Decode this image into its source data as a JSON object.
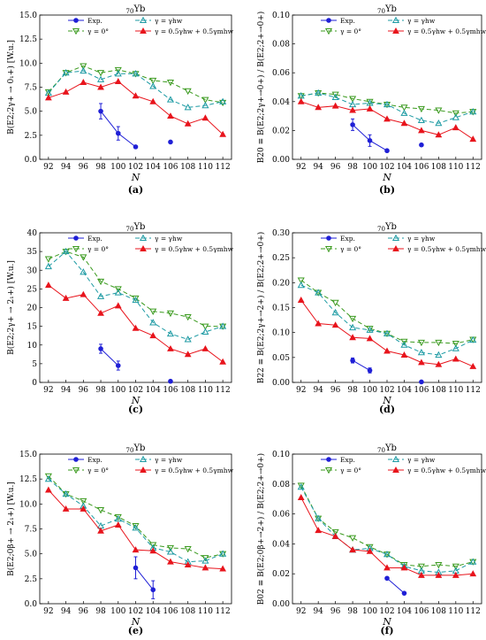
{
  "figure": {
    "colors": {
      "exp": "#1f1fd6",
      "gamma0": "#3a9a1e",
      "gammahw": "#1c9aa3",
      "mix": "#e8141c"
    }
  },
  "chart_data": [
    {
      "type": "line",
      "panel_label": "(a)",
      "title": "70Yb",
      "xlabel": "N",
      "ylabel": "B(E2;2γ+ → 0₁+) [W.u.]",
      "xlim": [
        91,
        113
      ],
      "ylim": [
        0,
        15
      ],
      "xticks": [
        "92",
        "94",
        "96",
        "98",
        "100",
        "102",
        "104",
        "106",
        "108",
        "110",
        "112"
      ],
      "yticks": [
        "0.0",
        "2.5",
        "5.0",
        "7.5",
        "10.0",
        "12.5",
        "15.0"
      ],
      "legend": [
        "Exp.",
        "γ = 0°",
        "γ = γhw",
        "γ = 0.5γhw + 0.5γmhw"
      ],
      "legend_position": "top-right",
      "series": [
        {
          "name": "γ = 0°",
          "x": [
            92,
            94,
            96,
            98,
            100,
            102,
            104,
            106,
            108,
            110,
            112
          ],
          "y": [
            7.0,
            9.0,
            9.7,
            9.0,
            9.3,
            8.9,
            8.2,
            8.0,
            7.1,
            6.2,
            5.9
          ]
        },
        {
          "name": "γ = γhw",
          "x": [
            92,
            94,
            96,
            98,
            100,
            102,
            104,
            106,
            108,
            110,
            112
          ],
          "y": [
            6.9,
            9.0,
            9.2,
            8.3,
            8.9,
            8.9,
            7.6,
            6.2,
            5.4,
            5.6,
            6.0
          ]
        },
        {
          "name": "γ = 0.5γhw + 0.5γmhw",
          "x": [
            92,
            94,
            96,
            98,
            100,
            102,
            104,
            106,
            108,
            110,
            112
          ],
          "y": [
            6.4,
            7.0,
            8.0,
            7.5,
            8.1,
            6.6,
            6.0,
            4.5,
            3.7,
            4.3,
            2.6
          ]
        },
        {
          "name": "Exp.",
          "x": [
            98,
            100,
            102
          ],
          "y": [
            5.0,
            2.7,
            1.3
          ],
          "err": [
            0.8,
            0.7,
            0.1
          ]
        },
        {
          "name": "Exp.",
          "x": [
            106
          ],
          "y": [
            1.8
          ],
          "err": [
            0
          ]
        }
      ]
    },
    {
      "type": "line",
      "panel_label": "(b)",
      "title": "70Yb",
      "xlabel": "N",
      "ylabel": "B20 ≡ B(E2;2γ+→0+) / B(E2;2+→0+)",
      "xlim": [
        91,
        113
      ],
      "ylim": [
        0,
        0.1
      ],
      "xticks": [
        "92",
        "94",
        "96",
        "98",
        "100",
        "102",
        "104",
        "106",
        "108",
        "110",
        "112"
      ],
      "yticks": [
        "0.00",
        "0.02",
        "0.04",
        "0.06",
        "0.08",
        "0.10"
      ],
      "legend": [
        "Exp.",
        "γ = 0°",
        "γ = γhw",
        "γ = 0.5γhw + 0.5γmhw"
      ],
      "legend_position": "top-right",
      "series": [
        {
          "name": "γ = 0°",
          "x": [
            92,
            94,
            96,
            98,
            100,
            102,
            104,
            106,
            108,
            110,
            112
          ],
          "y": [
            0.044,
            0.046,
            0.045,
            0.042,
            0.04,
            0.038,
            0.036,
            0.035,
            0.034,
            0.032,
            0.033
          ]
        },
        {
          "name": "γ = γhw",
          "x": [
            92,
            94,
            96,
            98,
            100,
            102,
            104,
            106,
            108,
            110,
            112
          ],
          "y": [
            0.044,
            0.046,
            0.043,
            0.038,
            0.039,
            0.038,
            0.032,
            0.027,
            0.025,
            0.029,
            0.033
          ]
        },
        {
          "name": "γ = 0.5γhw + 0.5γmhw",
          "x": [
            92,
            94,
            96,
            98,
            100,
            102,
            104,
            106,
            108,
            110,
            112
          ],
          "y": [
            0.04,
            0.036,
            0.037,
            0.034,
            0.035,
            0.028,
            0.025,
            0.02,
            0.017,
            0.022,
            0.014
          ]
        },
        {
          "name": "Exp.",
          "x": [
            98,
            100,
            102
          ],
          "y": [
            0.024,
            0.013,
            0.006
          ],
          "err": [
            0.004,
            0.004,
            0.0005
          ]
        },
        {
          "name": "Exp.",
          "x": [
            106
          ],
          "y": [
            0.01
          ],
          "err": [
            0
          ]
        }
      ]
    },
    {
      "type": "line",
      "panel_label": "(c)",
      "title": "70Yb",
      "xlabel": "N",
      "ylabel": "B(E2;2γ+ → 2₁+) [W.u.]",
      "xlim": [
        91,
        113
      ],
      "ylim": [
        0,
        40
      ],
      "xticks": [
        "92",
        "94",
        "96",
        "98",
        "100",
        "102",
        "104",
        "106",
        "108",
        "110",
        "112"
      ],
      "yticks": [
        "0",
        "5",
        "10",
        "15",
        "20",
        "25",
        "30",
        "35",
        "40"
      ],
      "legend": [
        "Exp.",
        "γ = 0°",
        "γ = γhw",
        "γ = 0.5γhw + 0.5γmhw"
      ],
      "legend_position": "top-right",
      "series": [
        {
          "name": "γ = 0°",
          "x": [
            92,
            94,
            96,
            98,
            100,
            102,
            104,
            106,
            108,
            110,
            112
          ],
          "y": [
            33.0,
            35.0,
            33.5,
            27.0,
            25.0,
            22.5,
            19.0,
            18.5,
            17.5,
            15.0,
            15.0
          ]
        },
        {
          "name": "γ = γhw",
          "x": [
            92,
            94,
            96,
            98,
            100,
            102,
            104,
            106,
            108,
            110,
            112
          ],
          "y": [
            31.0,
            35.0,
            29.5,
            23.0,
            24.0,
            22.0,
            16.0,
            13.0,
            11.5,
            13.5,
            15.0
          ]
        },
        {
          "name": "γ = 0.5γhw + 0.5γmhw",
          "x": [
            92,
            94,
            96,
            98,
            100,
            102,
            104,
            106,
            108,
            110,
            112
          ],
          "y": [
            26.0,
            22.5,
            23.5,
            18.5,
            20.5,
            14.5,
            12.5,
            9.0,
            7.5,
            9.0,
            5.5
          ]
        },
        {
          "name": "Exp.",
          "x": [
            98,
            100
          ],
          "y": [
            9.0,
            4.5
          ],
          "err": [
            1.2,
            1.2
          ]
        },
        {
          "name": "Exp.",
          "x": [
            106
          ],
          "y": [
            0.3
          ],
          "err": [
            0
          ]
        }
      ]
    },
    {
      "type": "line",
      "panel_label": "(d)",
      "title": "70Yb",
      "xlabel": "N",
      "ylabel": "B22 ≡ B(E2;2γ+→2+) / B(E2;2+→0+)",
      "xlim": [
        91,
        113
      ],
      "ylim": [
        0,
        0.3
      ],
      "xticks": [
        "92",
        "94",
        "96",
        "98",
        "100",
        "102",
        "104",
        "106",
        "108",
        "110",
        "112"
      ],
      "yticks": [
        "0.00",
        "0.05",
        "0.10",
        "0.15",
        "0.20",
        "0.25",
        "0.30"
      ],
      "legend": [
        "Exp.",
        "γ = 0°",
        "γ = γhw",
        "γ = 0.5γhw + 0.5γmhw"
      ],
      "legend_position": "top-right",
      "series": [
        {
          "name": "γ = 0°",
          "x": [
            92,
            94,
            96,
            98,
            100,
            102,
            104,
            106,
            108,
            110,
            112
          ],
          "y": [
            0.205,
            0.18,
            0.16,
            0.128,
            0.108,
            0.098,
            0.082,
            0.08,
            0.08,
            0.078,
            0.086
          ]
        },
        {
          "name": "γ = γhw",
          "x": [
            92,
            94,
            96,
            98,
            100,
            102,
            104,
            106,
            108,
            110,
            112
          ],
          "y": [
            0.195,
            0.18,
            0.14,
            0.11,
            0.105,
            0.098,
            0.075,
            0.06,
            0.055,
            0.068,
            0.085
          ]
        },
        {
          "name": "γ = 0.5γhw + 0.5γmhw",
          "x": [
            92,
            94,
            96,
            98,
            100,
            102,
            104,
            106,
            108,
            110,
            112
          ],
          "y": [
            0.165,
            0.118,
            0.115,
            0.09,
            0.088,
            0.063,
            0.055,
            0.04,
            0.036,
            0.047,
            0.032
          ]
        },
        {
          "name": "Exp.",
          "x": [
            98,
            100
          ],
          "y": [
            0.044,
            0.024
          ],
          "err": [
            0.005,
            0.005
          ]
        },
        {
          "name": "Exp.",
          "x": [
            106
          ],
          "y": [
            0.001
          ],
          "err": [
            0
          ]
        }
      ]
    },
    {
      "type": "line",
      "panel_label": "(e)",
      "title": "70Yb",
      "xlabel": "N",
      "ylabel": "B(E2;0β+ → 2₁+) [W.u.]",
      "xlim": [
        91,
        113
      ],
      "ylim": [
        0,
        15
      ],
      "xticks": [
        "92",
        "94",
        "96",
        "98",
        "100",
        "102",
        "104",
        "106",
        "108",
        "110",
        "112"
      ],
      "yticks": [
        "0.0",
        "2.5",
        "5.0",
        "7.5",
        "10.0",
        "12.5",
        "15.0"
      ],
      "legend": [
        "Exp.",
        "γ = 0°",
        "γ = γhw",
        "γ = 0.5γhw + 0.5γmhw"
      ],
      "legend_position": "top-right",
      "series": [
        {
          "name": "γ = 0°",
          "x": [
            92,
            94,
            96,
            98,
            100,
            102,
            104,
            106,
            108,
            110,
            112
          ],
          "y": [
            12.8,
            11.0,
            10.3,
            9.4,
            8.7,
            7.8,
            5.9,
            5.6,
            5.5,
            4.6,
            5.0
          ]
        },
        {
          "name": "γ = γhw",
          "x": [
            92,
            94,
            96,
            98,
            100,
            102,
            104,
            106,
            108,
            110,
            112
          ],
          "y": [
            12.5,
            11.0,
            9.8,
            7.8,
            8.5,
            7.6,
            5.6,
            5.2,
            4.2,
            4.3,
            5.0
          ]
        },
        {
          "name": "γ = 0.5γhw + 0.5γmhw",
          "x": [
            92,
            94,
            96,
            98,
            100,
            102,
            104,
            106,
            108,
            110,
            112
          ],
          "y": [
            11.4,
            9.5,
            9.5,
            7.3,
            7.9,
            5.4,
            5.3,
            4.2,
            3.9,
            3.6,
            3.5
          ]
        },
        {
          "name": "Exp.",
          "x": [
            102,
            104
          ],
          "y": [
            3.6,
            1.4
          ],
          "err": [
            1.1,
            0.9
          ]
        }
      ]
    },
    {
      "type": "line",
      "panel_label": "(f)",
      "title": "70Yb",
      "xlabel": "N",
      "ylabel": "B02 ≡ B(E2;0β+→2+) / B(E2;2+→0+)",
      "xlim": [
        91,
        113
      ],
      "ylim": [
        0,
        0.1
      ],
      "xticks": [
        "92",
        "94",
        "96",
        "98",
        "100",
        "102",
        "104",
        "106",
        "108",
        "110",
        "112"
      ],
      "yticks": [
        "0.00",
        "0.02",
        "0.04",
        "0.06",
        "0.08",
        "0.10"
      ],
      "legend": [
        "Exp.",
        "γ = 0°",
        "γ = γhw",
        "γ = 0.5γhw + 0.5γmhw"
      ],
      "legend_position": "top-right",
      "series": [
        {
          "name": "γ = 0°",
          "x": [
            92,
            94,
            96,
            98,
            100,
            102,
            104,
            106,
            108,
            110,
            112
          ],
          "y": [
            0.079,
            0.057,
            0.048,
            0.044,
            0.038,
            0.033,
            0.026,
            0.025,
            0.026,
            0.025,
            0.028
          ]
        },
        {
          "name": "γ = γhw",
          "x": [
            92,
            94,
            96,
            98,
            100,
            102,
            104,
            106,
            108,
            110,
            112
          ],
          "y": [
            0.078,
            0.057,
            0.045,
            0.036,
            0.037,
            0.033,
            0.025,
            0.022,
            0.021,
            0.022,
            0.028
          ]
        },
        {
          "name": "γ = 0.5γhw + 0.5γmhw",
          "x": [
            92,
            94,
            96,
            98,
            100,
            102,
            104,
            106,
            108,
            110,
            112
          ],
          "y": [
            0.071,
            0.049,
            0.045,
            0.036,
            0.035,
            0.024,
            0.024,
            0.019,
            0.019,
            0.019,
            0.02
          ]
        },
        {
          "name": "Exp.",
          "x": [
            102,
            104
          ],
          "y": [
            0.017,
            0.007
          ],
          "err": [
            0,
            0
          ]
        }
      ]
    }
  ]
}
